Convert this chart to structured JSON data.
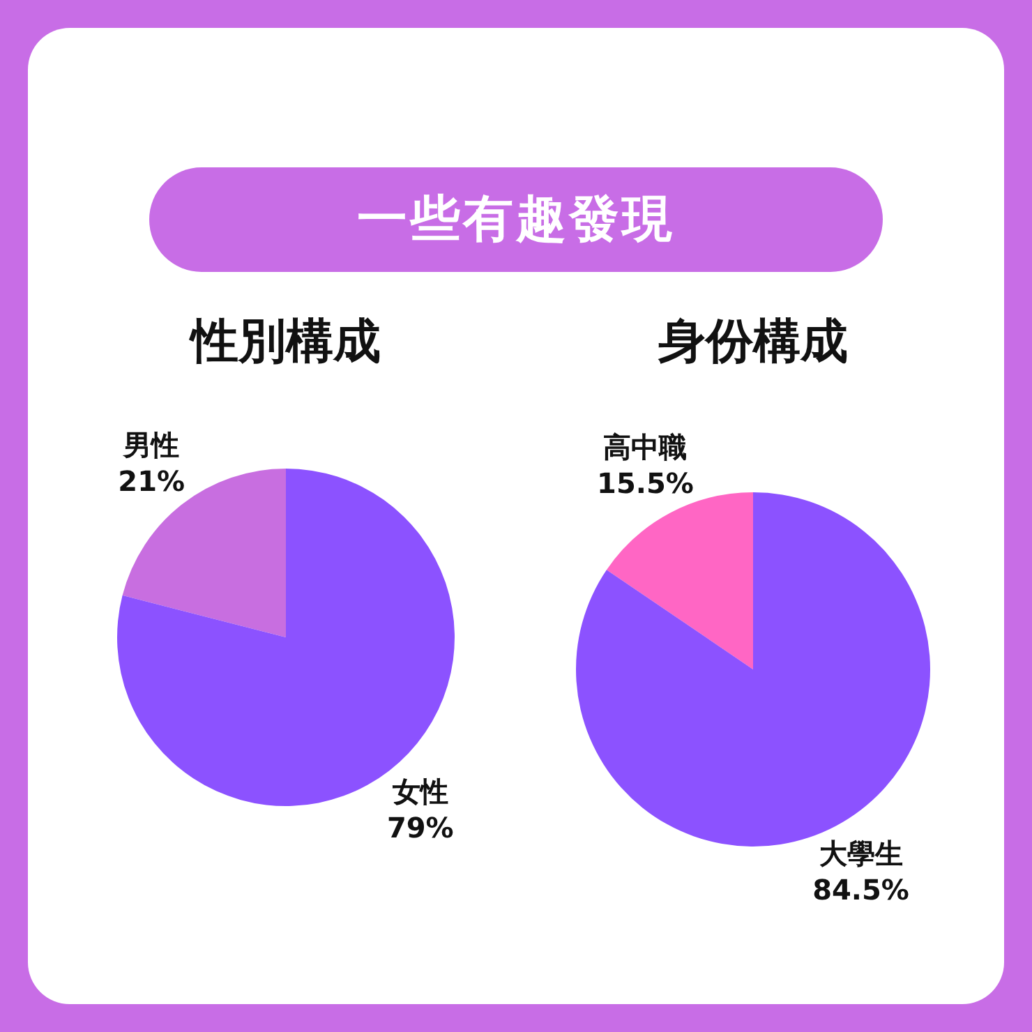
{
  "chart_data": [
    {
      "type": "other",
      "title": "一些有趣發現"
    },
    {
      "type": "pie",
      "title": "性別構成",
      "categories": [
        "男性",
        "女性"
      ],
      "values": [
        21,
        79
      ],
      "value_labels": [
        "21%",
        "79%"
      ],
      "colors": [
        "#c86ee0",
        "#8c52ff"
      ]
    },
    {
      "type": "pie",
      "title": "身份構成",
      "categories": [
        "高中職",
        "大學生"
      ],
      "values": [
        15.5,
        84.5
      ],
      "value_labels": [
        "15.5%",
        "84.5%"
      ],
      "colors": [
        "#ff66c4",
        "#8c52ff"
      ]
    }
  ]
}
